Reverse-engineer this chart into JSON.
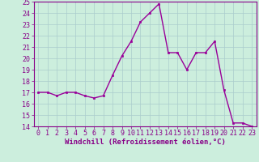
{
  "x": [
    0,
    1,
    2,
    3,
    4,
    5,
    6,
    7,
    8,
    9,
    10,
    11,
    12,
    13,
    14,
    15,
    16,
    17,
    18,
    19,
    20,
    21,
    22,
    23
  ],
  "y": [
    17,
    17,
    16.7,
    17,
    17,
    16.7,
    16.5,
    16.7,
    18.5,
    20.2,
    21.5,
    23.2,
    24.0,
    24.8,
    20.5,
    20.5,
    19.0,
    20.5,
    20.5,
    21.5,
    17.2,
    14.3,
    14.3,
    14.0
  ],
  "line_color": "#990099",
  "marker_color": "#990099",
  "bg_color": "#cceedd",
  "grid_color": "#aacccc",
  "xlabel": "Windchill (Refroidissement éolien,°C)",
  "ylim": [
    14,
    25
  ],
  "xlim_min": -0.5,
  "xlim_max": 23.5,
  "yticks": [
    14,
    15,
    16,
    17,
    18,
    19,
    20,
    21,
    22,
    23,
    24,
    25
  ],
  "xticks": [
    0,
    1,
    2,
    3,
    4,
    5,
    6,
    7,
    8,
    9,
    10,
    11,
    12,
    13,
    14,
    15,
    16,
    17,
    18,
    19,
    20,
    21,
    22,
    23
  ],
  "xlabel_fontsize": 6.5,
  "tick_fontsize": 6.0,
  "line_width": 1.0,
  "marker_size": 2.0,
  "text_color": "#880088"
}
